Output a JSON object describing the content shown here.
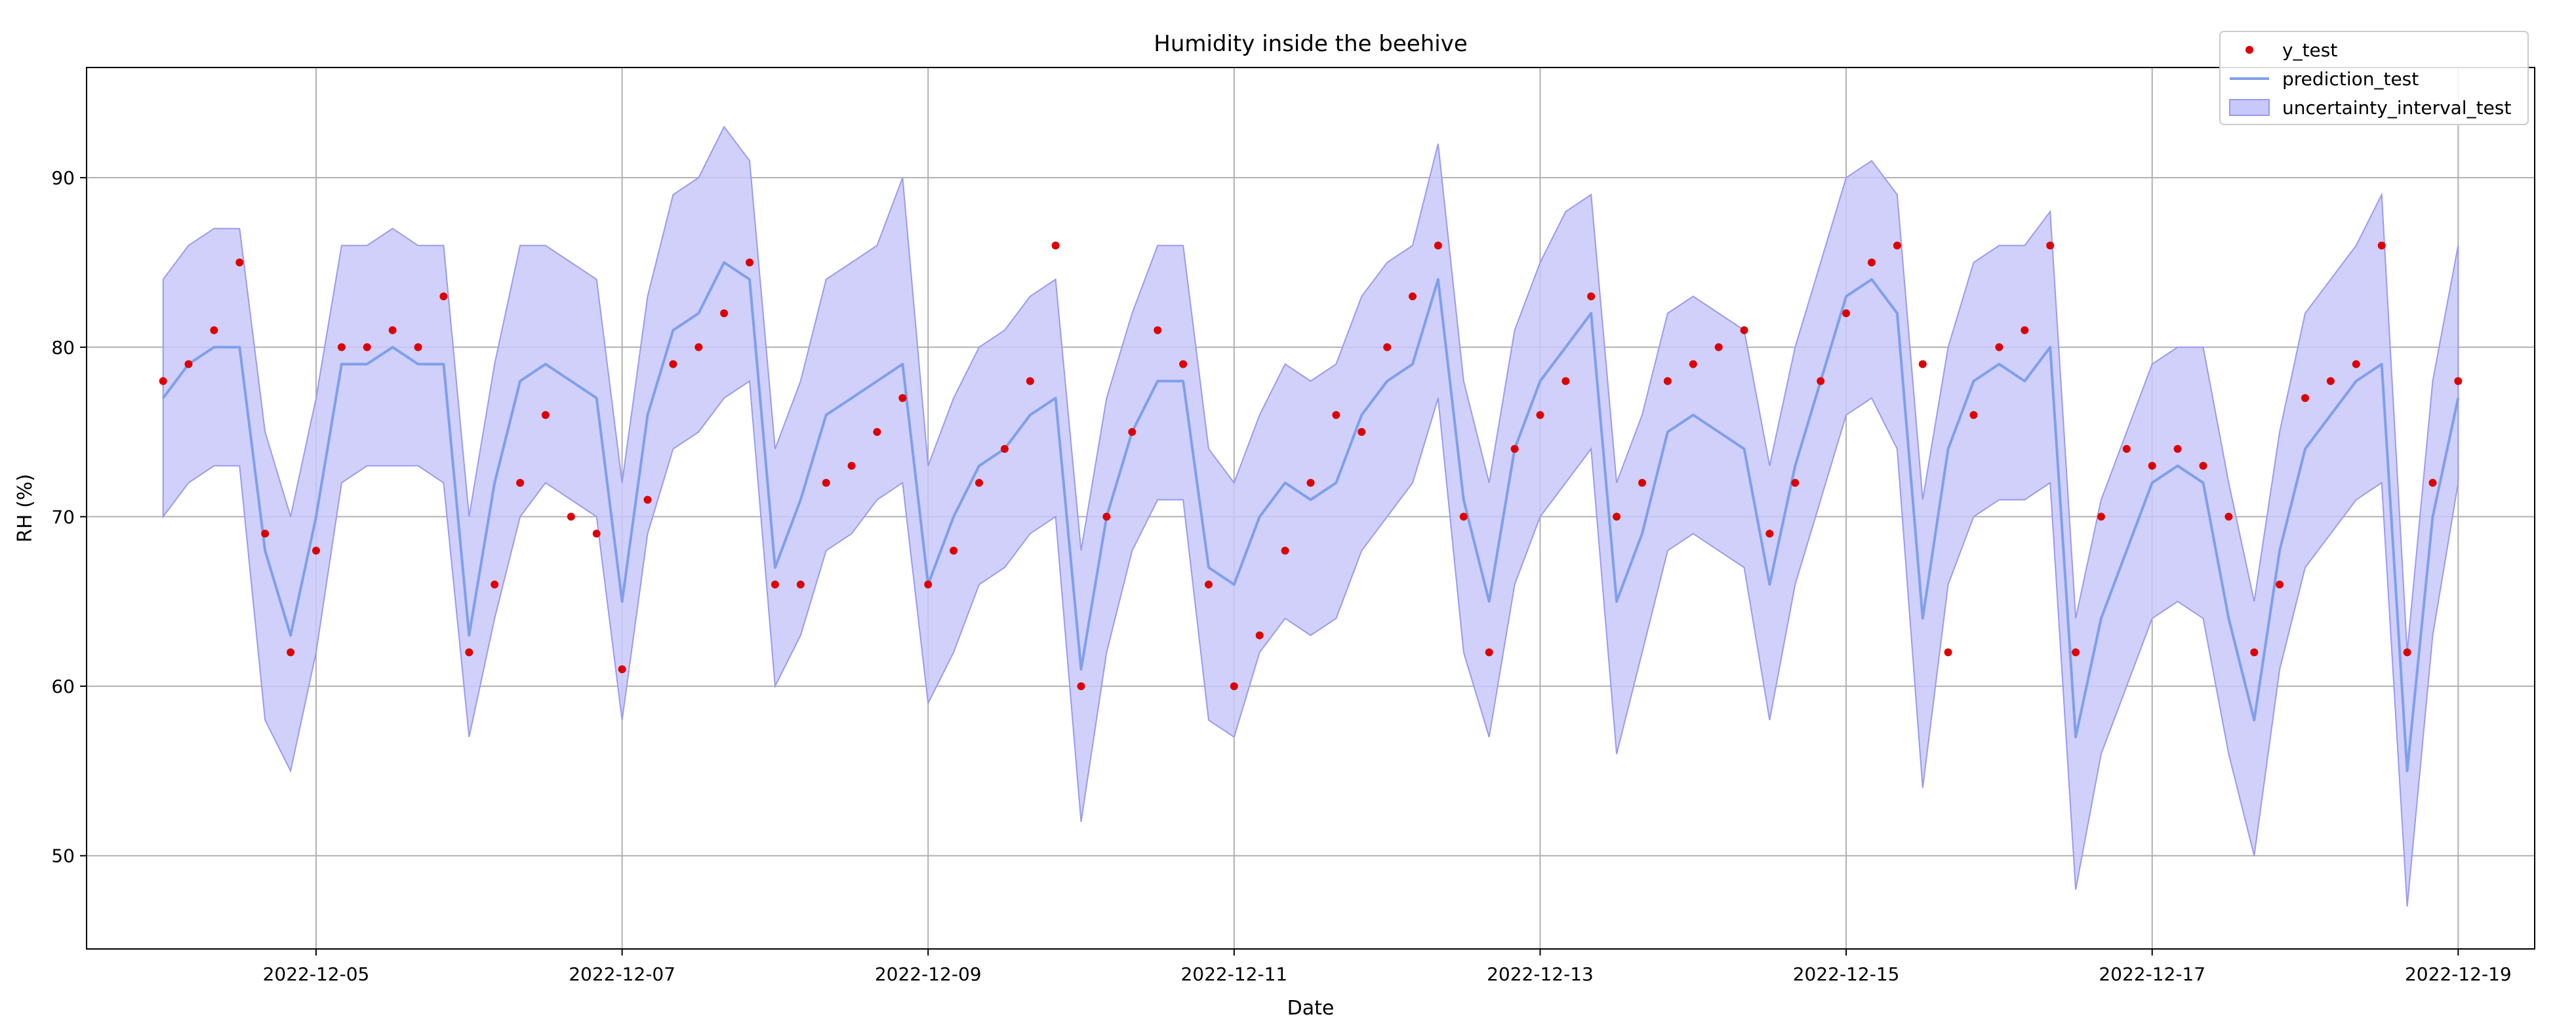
{
  "chart_data": {
    "type": "line",
    "title": "Humidity inside the beehive",
    "xlabel": "Date",
    "ylabel": "RH (%)",
    "grid": true,
    "legend_position": "top-right",
    "x_range": [
      "2022-12-03T12:00",
      "2022-12-19T12:00"
    ],
    "ylim": [
      44.5,
      96.5
    ],
    "x_ticks": [
      "2022-12-05",
      "2022-12-07",
      "2022-12-09",
      "2022-12-11",
      "2022-12-13",
      "2022-12-15",
      "2022-12-17",
      "2022-12-19"
    ],
    "y_ticks": [
      50,
      60,
      70,
      80,
      90
    ],
    "colors": {
      "y_test": "#dd0000",
      "prediction_test": "#7f9fea",
      "band_fill": "#c8c8fa",
      "band_edge": "#9a9af0",
      "grid": "#b0b0b0"
    },
    "series": [
      {
        "name": "y_test",
        "kind": "points",
        "x": [
          "12-04 00:00",
          "12-04 04:00",
          "12-04 08:00",
          "12-04 12:00",
          "12-04 16:00",
          "12-04 20:00",
          "12-05 00:00",
          "12-05 04:00",
          "12-05 08:00",
          "12-05 12:00",
          "12-05 16:00",
          "12-05 20:00",
          "12-06 00:00",
          "12-06 04:00",
          "12-06 08:00",
          "12-06 12:00",
          "12-06 16:00",
          "12-06 20:00",
          "12-07 00:00",
          "12-07 04:00",
          "12-07 08:00",
          "12-07 12:00",
          "12-07 16:00",
          "12-07 20:00",
          "12-08 00:00",
          "12-08 04:00",
          "12-08 08:00",
          "12-08 12:00",
          "12-08 16:00",
          "12-08 20:00",
          "12-09 00:00",
          "12-09 04:00",
          "12-09 08:00",
          "12-09 12:00",
          "12-09 16:00",
          "12-09 20:00",
          "12-10 00:00",
          "12-10 04:00",
          "12-10 08:00",
          "12-10 12:00",
          "12-10 16:00",
          "12-10 20:00",
          "12-11 00:00",
          "12-11 04:00",
          "12-11 08:00",
          "12-11 12:00",
          "12-11 16:00",
          "12-11 20:00",
          "12-12 00:00",
          "12-12 04:00",
          "12-12 08:00",
          "12-12 12:00",
          "12-12 16:00",
          "12-12 20:00",
          "12-13 00:00",
          "12-13 04:00",
          "12-13 08:00",
          "12-13 12:00",
          "12-13 16:00",
          "12-13 20:00",
          "12-14 00:00",
          "12-14 04:00",
          "12-14 08:00",
          "12-14 12:00",
          "12-14 16:00",
          "12-14 20:00",
          "12-15 00:00",
          "12-15 04:00",
          "12-15 08:00",
          "12-15 12:00",
          "12-15 16:00",
          "12-15 20:00",
          "12-16 00:00",
          "12-16 04:00",
          "12-16 08:00",
          "12-16 12:00",
          "12-16 16:00",
          "12-16 20:00",
          "12-17 00:00",
          "12-17 04:00",
          "12-17 08:00",
          "12-17 12:00",
          "12-17 16:00",
          "12-17 20:00",
          "12-18 00:00",
          "12-18 04:00",
          "12-18 08:00",
          "12-18 12:00",
          "12-18 16:00",
          "12-18 20:00",
          "12-19 00:00"
        ],
        "y": [
          78,
          79,
          81,
          85,
          69,
          62,
          68,
          80,
          80,
          81,
          80,
          83,
          62,
          66,
          72,
          76,
          70,
          69,
          61,
          71,
          79,
          80,
          82,
          85,
          66,
          66,
          72,
          73,
          75,
          77,
          66,
          68,
          72,
          74,
          78,
          86,
          60,
          70,
          75,
          81,
          79,
          66,
          60,
          63,
          68,
          72,
          76,
          75,
          80,
          83,
          86,
          70,
          62,
          74,
          76,
          78,
          83,
          70,
          72,
          78,
          79,
          80,
          81,
          69,
          72,
          78,
          82,
          85,
          86,
          79,
          62,
          76,
          80,
          81,
          86,
          62,
          70,
          74,
          73,
          74,
          73,
          70,
          62,
          66,
          77,
          78,
          79,
          86,
          62,
          72,
          78
        ]
      },
      {
        "name": "prediction_test",
        "kind": "line",
        "x": [
          "12-04 00:00",
          "12-04 04:00",
          "12-04 08:00",
          "12-04 12:00",
          "12-04 16:00",
          "12-04 20:00",
          "12-05 00:00",
          "12-05 04:00",
          "12-05 08:00",
          "12-05 12:00",
          "12-05 16:00",
          "12-05 20:00",
          "12-06 00:00",
          "12-06 04:00",
          "12-06 08:00",
          "12-06 12:00",
          "12-06 16:00",
          "12-06 20:00",
          "12-07 00:00",
          "12-07 04:00",
          "12-07 08:00",
          "12-07 12:00",
          "12-07 16:00",
          "12-07 20:00",
          "12-08 00:00",
          "12-08 04:00",
          "12-08 08:00",
          "12-08 12:00",
          "12-08 16:00",
          "12-08 20:00",
          "12-09 00:00",
          "12-09 04:00",
          "12-09 08:00",
          "12-09 12:00",
          "12-09 16:00",
          "12-09 20:00",
          "12-10 00:00",
          "12-10 04:00",
          "12-10 08:00",
          "12-10 12:00",
          "12-10 16:00",
          "12-10 20:00",
          "12-11 00:00",
          "12-11 04:00",
          "12-11 08:00",
          "12-11 12:00",
          "12-11 16:00",
          "12-11 20:00",
          "12-12 00:00",
          "12-12 04:00",
          "12-12 08:00",
          "12-12 12:00",
          "12-12 16:00",
          "12-12 20:00",
          "12-13 00:00",
          "12-13 04:00",
          "12-13 08:00",
          "12-13 12:00",
          "12-13 16:00",
          "12-13 20:00",
          "12-14 00:00",
          "12-14 04:00",
          "12-14 08:00",
          "12-14 12:00",
          "12-14 16:00",
          "12-14 20:00",
          "12-15 00:00",
          "12-15 04:00",
          "12-15 08:00",
          "12-15 12:00",
          "12-15 16:00",
          "12-15 20:00",
          "12-16 00:00",
          "12-16 04:00",
          "12-16 08:00",
          "12-16 12:00",
          "12-16 16:00",
          "12-16 20:00",
          "12-17 00:00",
          "12-17 04:00",
          "12-17 08:00",
          "12-17 12:00",
          "12-17 16:00",
          "12-17 20:00",
          "12-18 00:00",
          "12-18 04:00",
          "12-18 08:00",
          "12-18 12:00",
          "12-18 16:00",
          "12-18 20:00",
          "12-19 00:00"
        ],
        "y": [
          77,
          79,
          80,
          80,
          68,
          63,
          70,
          79,
          79,
          80,
          79,
          79,
          63,
          72,
          78,
          79,
          78,
          77,
          65,
          76,
          81,
          82,
          85,
          84,
          67,
          71,
          76,
          77,
          78,
          79,
          66,
          70,
          73,
          74,
          76,
          77,
          61,
          70,
          75,
          78,
          78,
          67,
          66,
          70,
          72,
          71,
          72,
          76,
          78,
          79,
          84,
          71,
          65,
          74,
          78,
          80,
          82,
          65,
          69,
          75,
          76,
          75,
          74,
          66,
          73,
          78,
          83,
          84,
          82,
          64,
          74,
          78,
          79,
          78,
          80,
          57,
          64,
          68,
          72,
          73,
          72,
          64,
          58,
          68,
          74,
          76,
          78,
          79,
          55,
          70,
          77
        ]
      },
      {
        "name": "uncertainty_interval_test",
        "kind": "band",
        "x": [
          "12-04 00:00",
          "12-04 04:00",
          "12-04 08:00",
          "12-04 12:00",
          "12-04 16:00",
          "12-04 20:00",
          "12-05 00:00",
          "12-05 04:00",
          "12-05 08:00",
          "12-05 12:00",
          "12-05 16:00",
          "12-05 20:00",
          "12-06 00:00",
          "12-06 04:00",
          "12-06 08:00",
          "12-06 12:00",
          "12-06 16:00",
          "12-06 20:00",
          "12-07 00:00",
          "12-07 04:00",
          "12-07 08:00",
          "12-07 12:00",
          "12-07 16:00",
          "12-07 20:00",
          "12-08 00:00",
          "12-08 04:00",
          "12-08 08:00",
          "12-08 12:00",
          "12-08 16:00",
          "12-08 20:00",
          "12-09 00:00",
          "12-09 04:00",
          "12-09 08:00",
          "12-09 12:00",
          "12-09 16:00",
          "12-09 20:00",
          "12-10 00:00",
          "12-10 04:00",
          "12-10 08:00",
          "12-10 12:00",
          "12-10 16:00",
          "12-10 20:00",
          "12-11 00:00",
          "12-11 04:00",
          "12-11 08:00",
          "12-11 12:00",
          "12-11 16:00",
          "12-11 20:00",
          "12-12 00:00",
          "12-12 04:00",
          "12-12 08:00",
          "12-12 12:00",
          "12-12 16:00",
          "12-12 20:00",
          "12-13 00:00",
          "12-13 04:00",
          "12-13 08:00",
          "12-13 12:00",
          "12-13 16:00",
          "12-13 20:00",
          "12-14 00:00",
          "12-14 04:00",
          "12-14 08:00",
          "12-14 12:00",
          "12-14 16:00",
          "12-14 20:00",
          "12-15 00:00",
          "12-15 04:00",
          "12-15 08:00",
          "12-15 12:00",
          "12-15 16:00",
          "12-15 20:00",
          "12-16 00:00",
          "12-16 04:00",
          "12-16 08:00",
          "12-16 12:00",
          "12-16 16:00",
          "12-16 20:00",
          "12-17 00:00",
          "12-17 04:00",
          "12-17 08:00",
          "12-17 12:00",
          "12-17 16:00",
          "12-17 20:00",
          "12-18 00:00",
          "12-18 04:00",
          "12-18 08:00",
          "12-18 12:00",
          "12-18 16:00",
          "12-18 20:00",
          "12-19 00:00"
        ],
        "lower": [
          70,
          72,
          73,
          73,
          58,
          55,
          62,
          72,
          73,
          73,
          73,
          72,
          57,
          64,
          70,
          72,
          71,
          70,
          58,
          69,
          74,
          75,
          77,
          78,
          60,
          63,
          68,
          69,
          71,
          72,
          59,
          62,
          66,
          67,
          69,
          70,
          52,
          62,
          68,
          71,
          71,
          58,
          57,
          62,
          64,
          63,
          64,
          68,
          70,
          72,
          77,
          62,
          57,
          66,
          70,
          72,
          74,
          56,
          62,
          68,
          69,
          68,
          67,
          58,
          66,
          71,
          76,
          77,
          74,
          54,
          66,
          70,
          71,
          71,
          72,
          48,
          56,
          60,
          64,
          65,
          64,
          56,
          50,
          61,
          67,
          69,
          71,
          72,
          47,
          63,
          72
        ],
        "upper": [
          84,
          86,
          87,
          87,
          75,
          70,
          77,
          86,
          86,
          87,
          86,
          86,
          70,
          79,
          86,
          86,
          85,
          84,
          72,
          83,
          89,
          90,
          93,
          91,
          74,
          78,
          84,
          85,
          86,
          90,
          73,
          77,
          80,
          81,
          83,
          84,
          68,
          77,
          82,
          86,
          86,
          74,
          72,
          76,
          79,
          78,
          79,
          83,
          85,
          86,
          92,
          78,
          72,
          81,
          85,
          88,
          89,
          72,
          76,
          82,
          83,
          82,
          81,
          73,
          80,
          85,
          90,
          91,
          89,
          71,
          80,
          85,
          86,
          86,
          88,
          64,
          71,
          75,
          79,
          80,
          80,
          72,
          65,
          75,
          82,
          84,
          86,
          89,
          62,
          78,
          86
        ]
      }
    ],
    "legend": [
      {
        "label": "y_test",
        "kind": "marker"
      },
      {
        "label": "prediction_test",
        "kind": "line"
      },
      {
        "label": "uncertainty_interval_test",
        "kind": "patch"
      }
    ]
  }
}
